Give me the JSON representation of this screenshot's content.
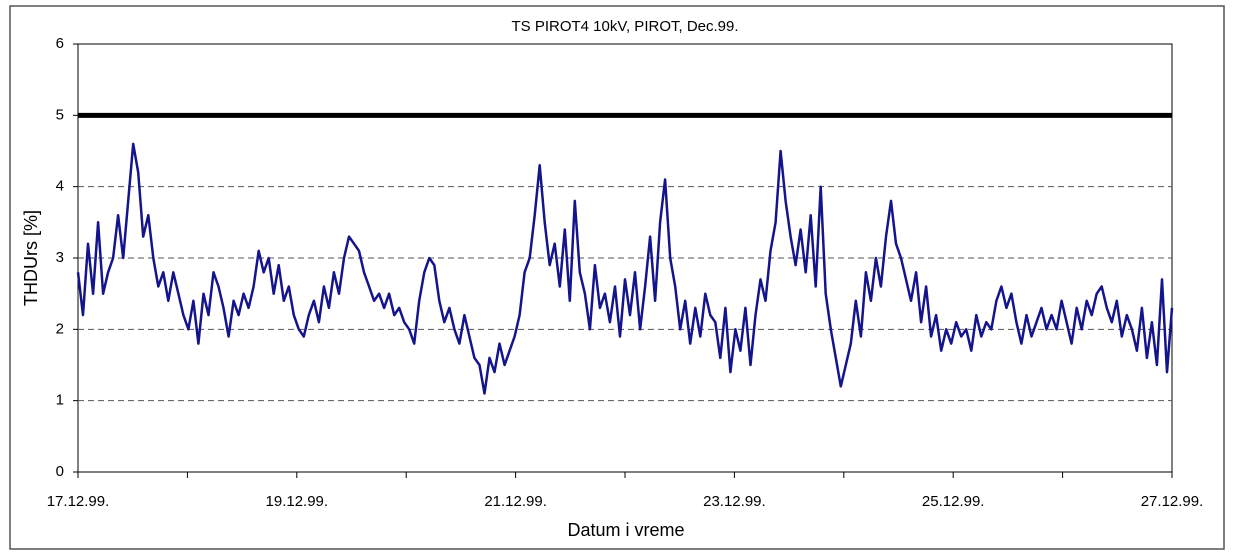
{
  "chart_data": {
    "type": "line",
    "title": "TS PIROT4 10kV, PIROT, Dec.99.",
    "x_label": "Datum i vreme",
    "y_label": "THDUrs  [%]",
    "xlim": [
      "1999-12-17",
      "1999-12-27"
    ],
    "xticks": [
      {
        "value": "1999-12-17",
        "label": "17.12.99."
      },
      {
        "value": "1999-12-18"
      },
      {
        "value": "1999-12-19",
        "label": "19.12.99."
      },
      {
        "value": "1999-12-20"
      },
      {
        "value": "1999-12-21",
        "label": "21.12.99."
      },
      {
        "value": "1999-12-22"
      },
      {
        "value": "1999-12-23",
        "label": "23.12.99."
      },
      {
        "value": "1999-12-24"
      },
      {
        "value": "1999-12-25",
        "label": "25.12.99."
      },
      {
        "value": "1999-12-26"
      },
      {
        "value": "1999-12-27",
        "label": "27.12.99."
      }
    ],
    "ylim": [
      0,
      6
    ],
    "yticks": [
      0,
      1,
      2,
      3,
      4,
      5,
      6
    ],
    "grid": true,
    "threshold": 5,
    "series": [
      {
        "name": "THDUrs",
        "color": "#14148c",
        "values": [
          2.8,
          2.2,
          3.2,
          2.5,
          3.5,
          2.5,
          2.8,
          3.0,
          3.6,
          3.0,
          3.8,
          4.6,
          4.2,
          3.3,
          3.6,
          3.0,
          2.6,
          2.8,
          2.4,
          2.8,
          2.5,
          2.2,
          2.0,
          2.4,
          1.8,
          2.5,
          2.2,
          2.8,
          2.6,
          2.3,
          1.9,
          2.4,
          2.2,
          2.5,
          2.3,
          2.6,
          3.1,
          2.8,
          3.0,
          2.5,
          2.9,
          2.4,
          2.6,
          2.2,
          2.0,
          1.9,
          2.2,
          2.4,
          2.1,
          2.6,
          2.3,
          2.8,
          2.5,
          3.0,
          3.3,
          3.2,
          3.1,
          2.8,
          2.6,
          2.4,
          2.5,
          2.3,
          2.5,
          2.2,
          2.3,
          2.1,
          2.0,
          1.8,
          2.4,
          2.8,
          3.0,
          2.9,
          2.4,
          2.1,
          2.3,
          2.0,
          1.8,
          2.2,
          1.9,
          1.6,
          1.5,
          1.1,
          1.6,
          1.4,
          1.8,
          1.5,
          1.7,
          1.9,
          2.2,
          2.8,
          3.0,
          3.6,
          4.3,
          3.5,
          2.9,
          3.2,
          2.6,
          3.4,
          2.4,
          3.8,
          2.8,
          2.5,
          2.0,
          2.9,
          2.3,
          2.5,
          2.1,
          2.6,
          1.9,
          2.7,
          2.2,
          2.8,
          2.0,
          2.6,
          3.3,
          2.4,
          3.5,
          4.1,
          3.0,
          2.6,
          2.0,
          2.4,
          1.8,
          2.3,
          1.9,
          2.5,
          2.2,
          2.1,
          1.6,
          2.3,
          1.4,
          2.0,
          1.7,
          2.3,
          1.5,
          2.2,
          2.7,
          2.4,
          3.1,
          3.5,
          4.5,
          3.8,
          3.3,
          2.9,
          3.4,
          2.8,
          3.6,
          2.6,
          4.0,
          2.5,
          2.0,
          1.6,
          1.2,
          1.5,
          1.8,
          2.4,
          1.9,
          2.8,
          2.4,
          3.0,
          2.6,
          3.3,
          3.8,
          3.2,
          3.0,
          2.7,
          2.4,
          2.8,
          2.1,
          2.6,
          1.9,
          2.2,
          1.7,
          2.0,
          1.8,
          2.1,
          1.9,
          2.0,
          1.7,
          2.2,
          1.9,
          2.1,
          2.0,
          2.4,
          2.6,
          2.3,
          2.5,
          2.1,
          1.8,
          2.2,
          1.9,
          2.1,
          2.3,
          2.0,
          2.2,
          2.0,
          2.4,
          2.1,
          1.8,
          2.3,
          2.0,
          2.4,
          2.2,
          2.5,
          2.6,
          2.3,
          2.1,
          2.4,
          1.9,
          2.2,
          2.0,
          1.7,
          2.3,
          1.6,
          2.1,
          1.5,
          2.7,
          1.4,
          2.3
        ]
      }
    ]
  }
}
